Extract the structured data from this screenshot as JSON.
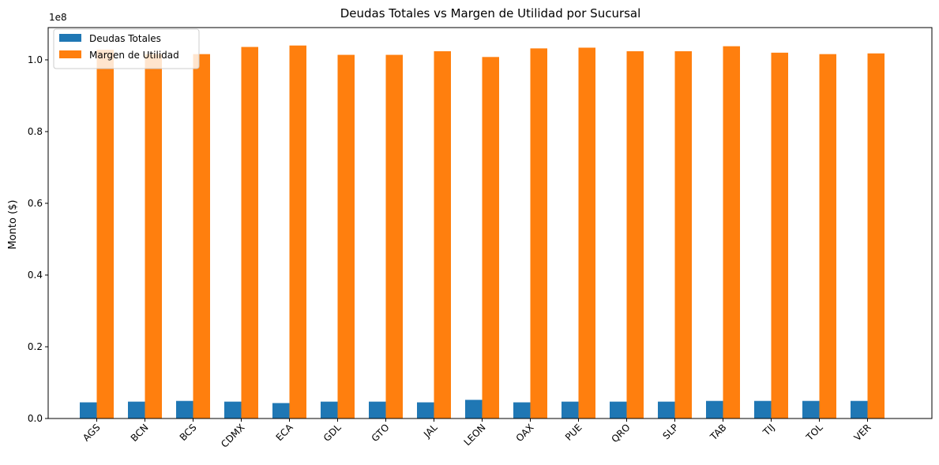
{
  "chart_data": {
    "type": "bar",
    "title": "Deudas Totales vs Margen de Utilidad por Sucursal",
    "xlabel": "",
    "ylabel": "Monto ($)",
    "y_offset_text": "1e8",
    "ylim": [
      0,
      109000000
    ],
    "yticks": [
      0,
      20000000,
      40000000,
      60000000,
      80000000,
      100000000
    ],
    "ytick_labels": [
      "0.0",
      "0.2",
      "0.4",
      "0.6",
      "0.8",
      "1.0"
    ],
    "legend_position": "top-left",
    "grid": false,
    "categories": [
      "AGS",
      "BCN",
      "BCS",
      "CDMX",
      "ECA",
      "GDL",
      "GTO",
      "JAL",
      "LEON",
      "OAX",
      "PUE",
      "QRO",
      "SLP",
      "TAB",
      "TIJ",
      "TOL",
      "VER"
    ],
    "series": [
      {
        "name": "Deudas Totales",
        "color": "#1f77b4",
        "values": [
          4500000,
          4700000,
          4900000,
          4700000,
          4300000,
          4700000,
          4700000,
          4500000,
          5200000,
          4500000,
          4700000,
          4700000,
          4700000,
          4900000,
          4900000,
          4900000,
          4900000
        ]
      },
      {
        "name": "Margen de Utilidad",
        "color": "#ff7f0e",
        "values": [
          102800000,
          101600000,
          101600000,
          103600000,
          104000000,
          101400000,
          101400000,
          102400000,
          100800000,
          103200000,
          103400000,
          102400000,
          102400000,
          103800000,
          102000000,
          101600000,
          101800000
        ]
      }
    ]
  }
}
